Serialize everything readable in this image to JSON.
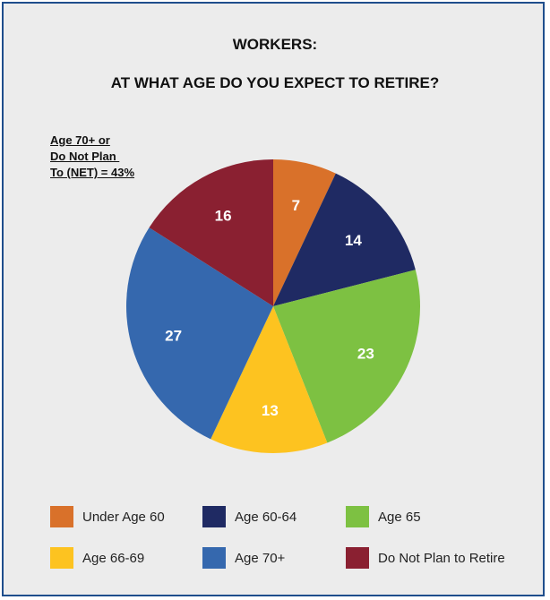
{
  "title": {
    "line1": "WORKERS:",
    "line2": "AT WHAT AGE DO YOU EXPECT TO RETIRE?"
  },
  "annotation": {
    "line1": "Age 70+ or",
    "line2": "Do Not Plan ",
    "line3": "To (NET) = 43%"
  },
  "colors": {
    "under_60": "#d9712a",
    "age_60_64": "#1f2a63",
    "age_65": "#7dc142",
    "age_66_69": "#fdc320",
    "age_70_plus": "#3568ae",
    "do_not_plan": "#8a2031",
    "border": "#1f4e8c",
    "panel": "#ececec"
  },
  "chart_data": {
    "type": "pie",
    "title": "WORKERS: AT WHAT AGE DO YOU EXPECT TO RETIRE?",
    "start_angle": "12 o'clock",
    "direction": "clockwise",
    "slices": [
      {
        "label": "Under Age 60",
        "value": 7,
        "color": "#d9712a"
      },
      {
        "label": "Age 60-64",
        "value": 14,
        "color": "#1f2a63"
      },
      {
        "label": "Age 65",
        "value": 23,
        "color": "#7dc142"
      },
      {
        "label": "Age 66-69",
        "value": 13,
        "color": "#fdc320"
      },
      {
        "label": "Age 70+",
        "value": 27,
        "color": "#3568ae"
      },
      {
        "label": "Do Not Plan to Retire",
        "value": 16,
        "color": "#8a2031"
      }
    ],
    "legend_placement": "bottom"
  },
  "legend": [
    {
      "label": "Under Age 60",
      "color": "#d9712a"
    },
    {
      "label": "Age 60-64",
      "color": "#1f2a63"
    },
    {
      "label": "Age 65",
      "color": "#7dc142"
    },
    {
      "label": "Age 66-69",
      "color": "#fdc320"
    },
    {
      "label": "Age 70+",
      "color": "#3568ae"
    },
    {
      "label": "Do Not Plan to Retire",
      "color": "#8a2031"
    }
  ]
}
